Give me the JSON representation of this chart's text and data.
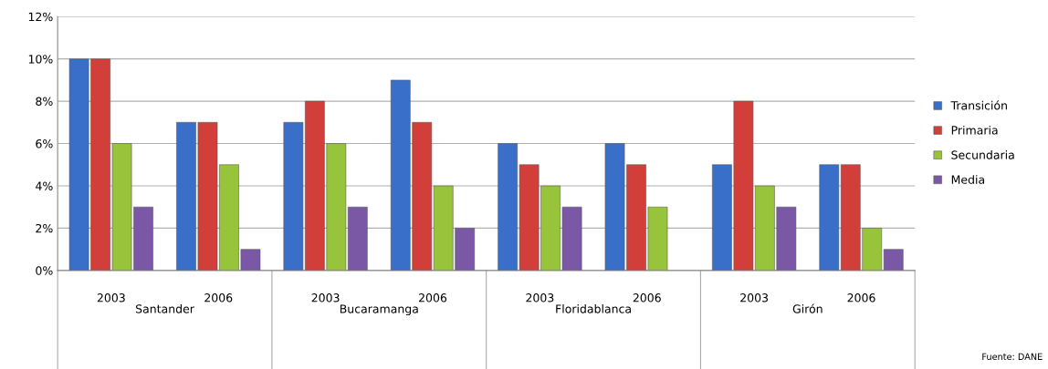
{
  "chart_data": {
    "type": "bar",
    "categories": [
      "2003",
      "2006",
      "2003",
      "2006",
      "2003",
      "2006",
      "2003",
      "2006"
    ],
    "series": [
      {
        "name": "Transición",
        "color": "#3a6fc9",
        "values": [
          10,
          7,
          7,
          9,
          6,
          6,
          5,
          5
        ]
      },
      {
        "name": "Primaria",
        "color": "#d23f3a",
        "values": [
          10,
          7,
          8,
          7,
          5,
          5,
          8,
          5
        ]
      },
      {
        "name": "Secundaria",
        "color": "#98c43c",
        "values": [
          6,
          5,
          6,
          4,
          4,
          3,
          4,
          2
        ]
      },
      {
        "name": "Media",
        "color": "#7b58a6",
        "values": [
          3,
          1,
          3,
          2,
          3,
          null,
          3,
          1
        ]
      }
    ],
    "ylim": [
      0,
      12
    ],
    "yticks": [
      {
        "value": 0,
        "label": "0%"
      },
      {
        "value": 2,
        "label": "2%"
      },
      {
        "value": 4,
        "label": "4%"
      },
      {
        "value": 6,
        "label": "6%"
      },
      {
        "value": 8,
        "label": "8%"
      },
      {
        "value": 10,
        "label": "10%"
      },
      {
        "value": 12,
        "label": "12%"
      }
    ],
    "grid": "y",
    "legend": "right",
    "annotations": [
      "Santander",
      "Bucaramanga",
      "Floridablanca",
      "Girón",
      "Fuente: DANE"
    ]
  }
}
